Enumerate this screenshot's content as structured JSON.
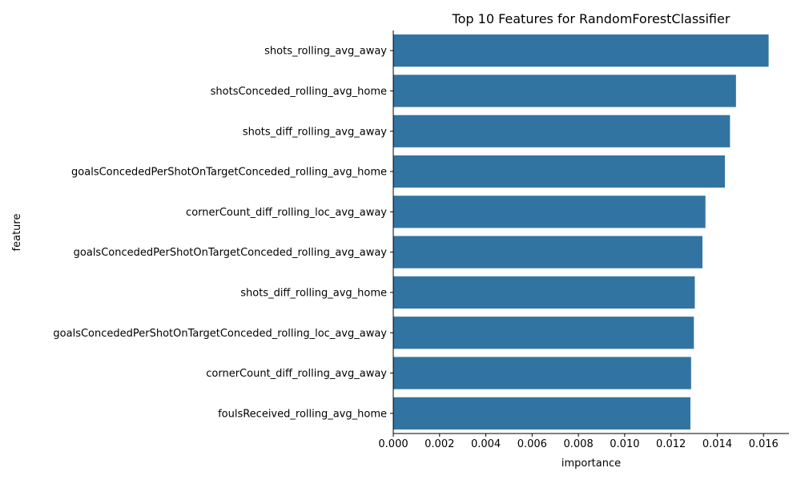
{
  "chart_data": {
    "type": "bar",
    "orientation": "horizontal",
    "title": "Top 10 Features for RandomForestClassifier",
    "xlabel": "importance",
    "ylabel": "feature",
    "xlim": [
      0,
      0.0171
    ],
    "xticks": [
      "0.000",
      "0.002",
      "0.004",
      "0.006",
      "0.008",
      "0.010",
      "0.012",
      "0.014",
      "0.016"
    ],
    "categories": [
      "shots_rolling_avg_away",
      "shotsConceded_rolling_avg_home",
      "shots_diff_rolling_avg_away",
      "goalsConcededPerShotOnTargetConceded_rolling_avg_home",
      "cornerCount_diff_rolling_loc_avg_away",
      "goalsConcededPerShotOnTargetConceded_rolling_avg_away",
      "shots_diff_rolling_avg_home",
      "goalsConcededPerShotOnTargetConceded_rolling_loc_avg_away",
      "cornerCount_diff_rolling_avg_away",
      "foulsReceived_rolling_avg_home"
    ],
    "values": [
      0.01622,
      0.01481,
      0.01455,
      0.01433,
      0.01349,
      0.01336,
      0.01303,
      0.01299,
      0.01287,
      0.01284
    ],
    "bar_color": "#3274a1",
    "grid": false,
    "legend": "none"
  }
}
